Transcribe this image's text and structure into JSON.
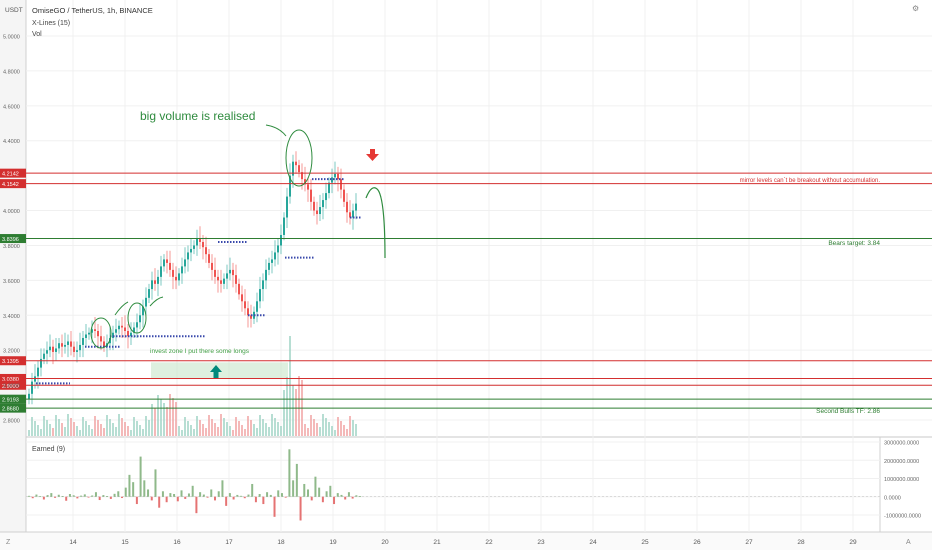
{
  "chart_data": [
    {
      "type": "candlestick",
      "symbol_title": "OmiseGO / TetherUS, 1h, BINANCE",
      "indicators": [
        "X-Lines (15)",
        "Vol"
      ],
      "currency_label": "USDT",
      "ylim": [
        2.78,
        5.2
      ],
      "y_ticks": [
        "5.0000",
        "4.8000",
        "4.6000",
        "4.4000",
        "4.0000",
        "3.8000",
        "3.6000",
        "3.4000",
        "3.2000",
        "3.0000",
        "2.8000"
      ],
      "x_ticks": [
        "14",
        "15",
        "16",
        "17",
        "18",
        "19",
        "20",
        "21",
        "22",
        "23",
        "24",
        "25",
        "26",
        "27",
        "28",
        "29"
      ],
      "price_levels": [
        {
          "price": "4.2142",
          "color": "#d32f2f"
        },
        {
          "price": "4.1542",
          "color": "#d32f2f"
        },
        {
          "price": "3.8396",
          "color": "#2e7d32"
        },
        {
          "price": "3.1395",
          "color": "#d32f2f"
        },
        {
          "price": "3.0380",
          "color": "#d32f2f"
        },
        {
          "price": "2.9990",
          "color": "#d32f2f"
        },
        {
          "price": "2.9193",
          "color": "#2e7d32"
        },
        {
          "price": "2.8680",
          "color": "#2e7d32"
        }
      ],
      "candles_close": [
        2.95,
        3.02,
        3.05,
        3.1,
        3.15,
        3.18,
        3.2,
        3.22,
        3.19,
        3.21,
        3.24,
        3.22,
        3.23,
        3.25,
        3.22,
        3.19,
        3.2,
        3.23,
        3.27,
        3.29,
        3.3,
        3.32,
        3.31,
        3.28,
        3.25,
        3.22,
        3.24,
        3.27,
        3.3,
        3.32,
        3.34,
        3.33,
        3.31,
        3.28,
        3.3,
        3.33,
        3.36,
        3.4,
        3.45,
        3.5,
        3.55,
        3.6,
        3.58,
        3.62,
        3.68,
        3.72,
        3.7,
        3.66,
        3.62,
        3.6,
        3.64,
        3.68,
        3.72,
        3.76,
        3.78,
        3.8,
        3.84,
        3.82,
        3.79,
        3.75,
        3.7,
        3.66,
        3.62,
        3.6,
        3.58,
        3.61,
        3.64,
        3.66,
        3.63,
        3.58,
        3.52,
        3.48,
        3.44,
        3.4,
        3.38,
        3.42,
        3.48,
        3.55,
        3.6,
        3.66,
        3.7,
        3.72,
        3.76,
        3.8,
        3.86,
        3.96,
        4.08,
        4.2,
        4.28,
        4.26,
        4.22,
        4.18,
        4.15,
        4.12,
        4.05,
        4.0,
        3.98,
        4.02,
        4.06,
        4.1,
        4.16,
        4.19,
        4.21,
        4.18,
        4.12,
        4.05,
        3.99,
        3.96,
        4.0,
        4.04
      ],
      "annotations": [
        "big volume is realised",
        "mirror levels can`t be breakout without accumulation.",
        "Bears target: 3.84",
        "invest zone I put there some longs",
        "Second Bulls TF: 2.86"
      ]
    },
    {
      "type": "bar",
      "title": "Earned (9)",
      "y_ticks": [
        "3000000.0000",
        "2000000.0000",
        "1000000.0000",
        "0.0000",
        "-1000000.0000"
      ],
      "ylim": [
        -1800000,
        3200000
      ],
      "values": [
        50000,
        -80000,
        120000,
        30000,
        -150000,
        90000,
        200000,
        -60000,
        110000,
        40000,
        -220000,
        150000,
        80000,
        -90000,
        60000,
        130000,
        -40000,
        70000,
        250000,
        -180000,
        90000,
        40000,
        -120000,
        160000,
        300000,
        -70000,
        500000,
        1200000,
        800000,
        -400000,
        2200000,
        900000,
        400000,
        -200000,
        1500000,
        -600000,
        300000,
        -300000,
        200000,
        150000,
        -250000,
        350000,
        -120000,
        180000,
        600000,
        -900000,
        250000,
        120000,
        -50000,
        400000,
        -200000,
        300000,
        900000,
        -500000,
        200000,
        -150000,
        100000,
        50000,
        -80000,
        120000,
        700000,
        -300000,
        150000,
        -400000,
        250000,
        100000,
        -1100000,
        350000,
        200000,
        -50000,
        2600000,
        900000,
        1800000,
        -1300000,
        700000,
        400000,
        -200000,
        1100000,
        500000,
        -300000,
        300000,
        600000,
        -400000,
        200000,
        100000,
        -150000,
        250000,
        -100000,
        80000,
        40000
      ]
    }
  ]
}
